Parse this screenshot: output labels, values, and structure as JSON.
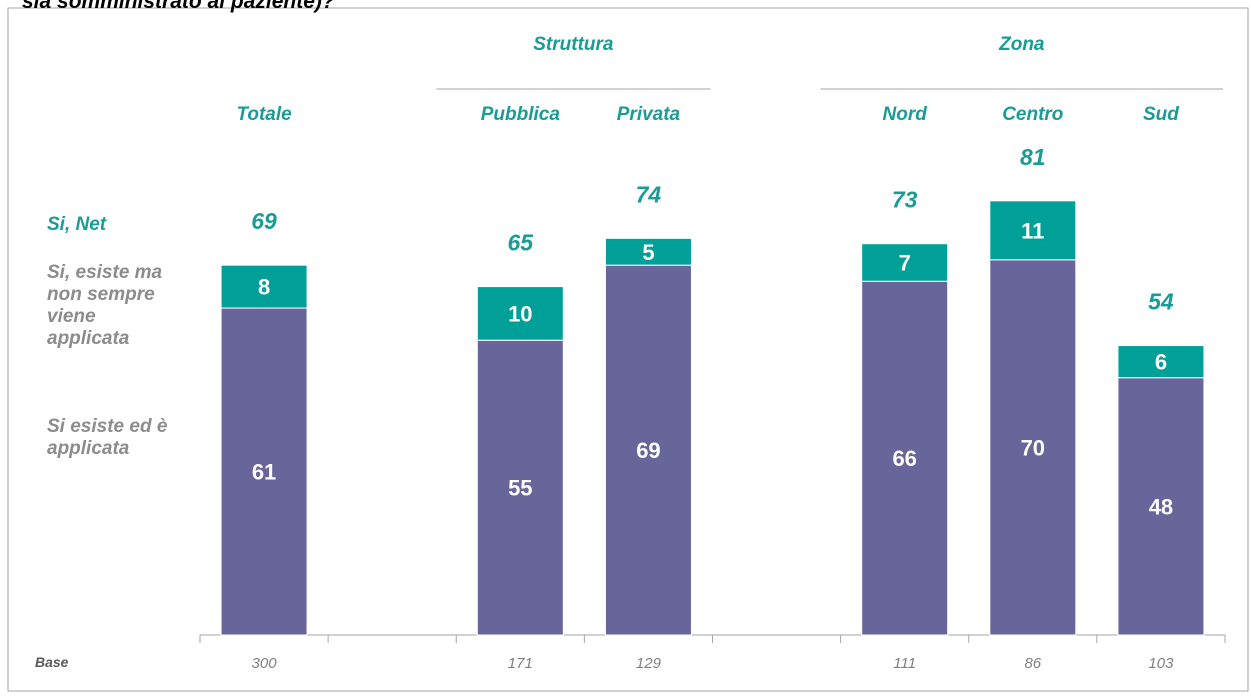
{
  "chart_data": {
    "type": "stacked_bar",
    "title": "sia somministrato al paziente)?",
    "groups": [
      {
        "name": "Struttura",
        "from": 2,
        "to": 3
      },
      {
        "name": "Zona",
        "from": 5,
        "to": 7
      }
    ],
    "categories": [
      "Totale",
      null,
      "Pubblica",
      "Privata",
      null,
      "Nord",
      "Centro",
      "Sud"
    ],
    "series": [
      {
        "name": "Si esiste ed è applicata",
        "color": "#67659a",
        "values": [
          61,
          null,
          55,
          69,
          null,
          66,
          70,
          48
        ]
      },
      {
        "name": "Si, esiste ma non sempre viene applicata",
        "color": "#00a099",
        "values": [
          8,
          null,
          10,
          5,
          null,
          7,
          11,
          6
        ]
      }
    ],
    "net": {
      "name": "Si,  Net",
      "values": [
        69,
        null,
        65,
        74,
        null,
        73,
        81,
        54
      ]
    },
    "base": {
      "name": "Base",
      "values": [
        300,
        null,
        171,
        129,
        null,
        111,
        86,
        103
      ]
    },
    "ylim": [
      0,
      100
    ]
  }
}
